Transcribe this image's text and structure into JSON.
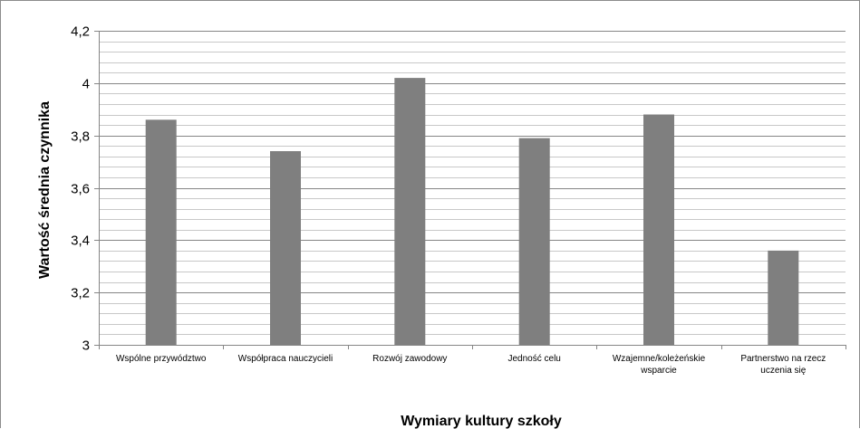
{
  "chart_data": {
    "type": "bar",
    "title": "",
    "xlabel": "Wymiary kultury szkoły",
    "ylabel": "Wartość średnia czynnika",
    "categories": [
      [
        "Wspólne przywództwo"
      ],
      [
        "Współpraca nauczycieli"
      ],
      [
        "Rozwój zawodowy"
      ],
      [
        "Jedność celu"
      ],
      [
        "Wzajemne/koleżeńskie",
        "wsparcie"
      ],
      [
        "Partnerstwo na rzecz",
        "uczenia się"
      ]
    ],
    "values": [
      3.86,
      3.74,
      4.02,
      3.79,
      3.88,
      3.36
    ],
    "ylim": [
      3,
      4.2
    ],
    "yticks": [
      3,
      3.2,
      3.4,
      3.6,
      3.8,
      4,
      4.2
    ],
    "ytick_labels": [
      "3",
      "3,2",
      "3,4",
      "3,6",
      "3,8",
      "4",
      "4,2"
    ],
    "minor_grid_step": 0.04,
    "grid": true,
    "legend": "none",
    "colors": {
      "bar": "#7f7f7f",
      "major_grid": "#868686",
      "minor_grid": "#c8c8c8",
      "axis": "#868686"
    }
  }
}
